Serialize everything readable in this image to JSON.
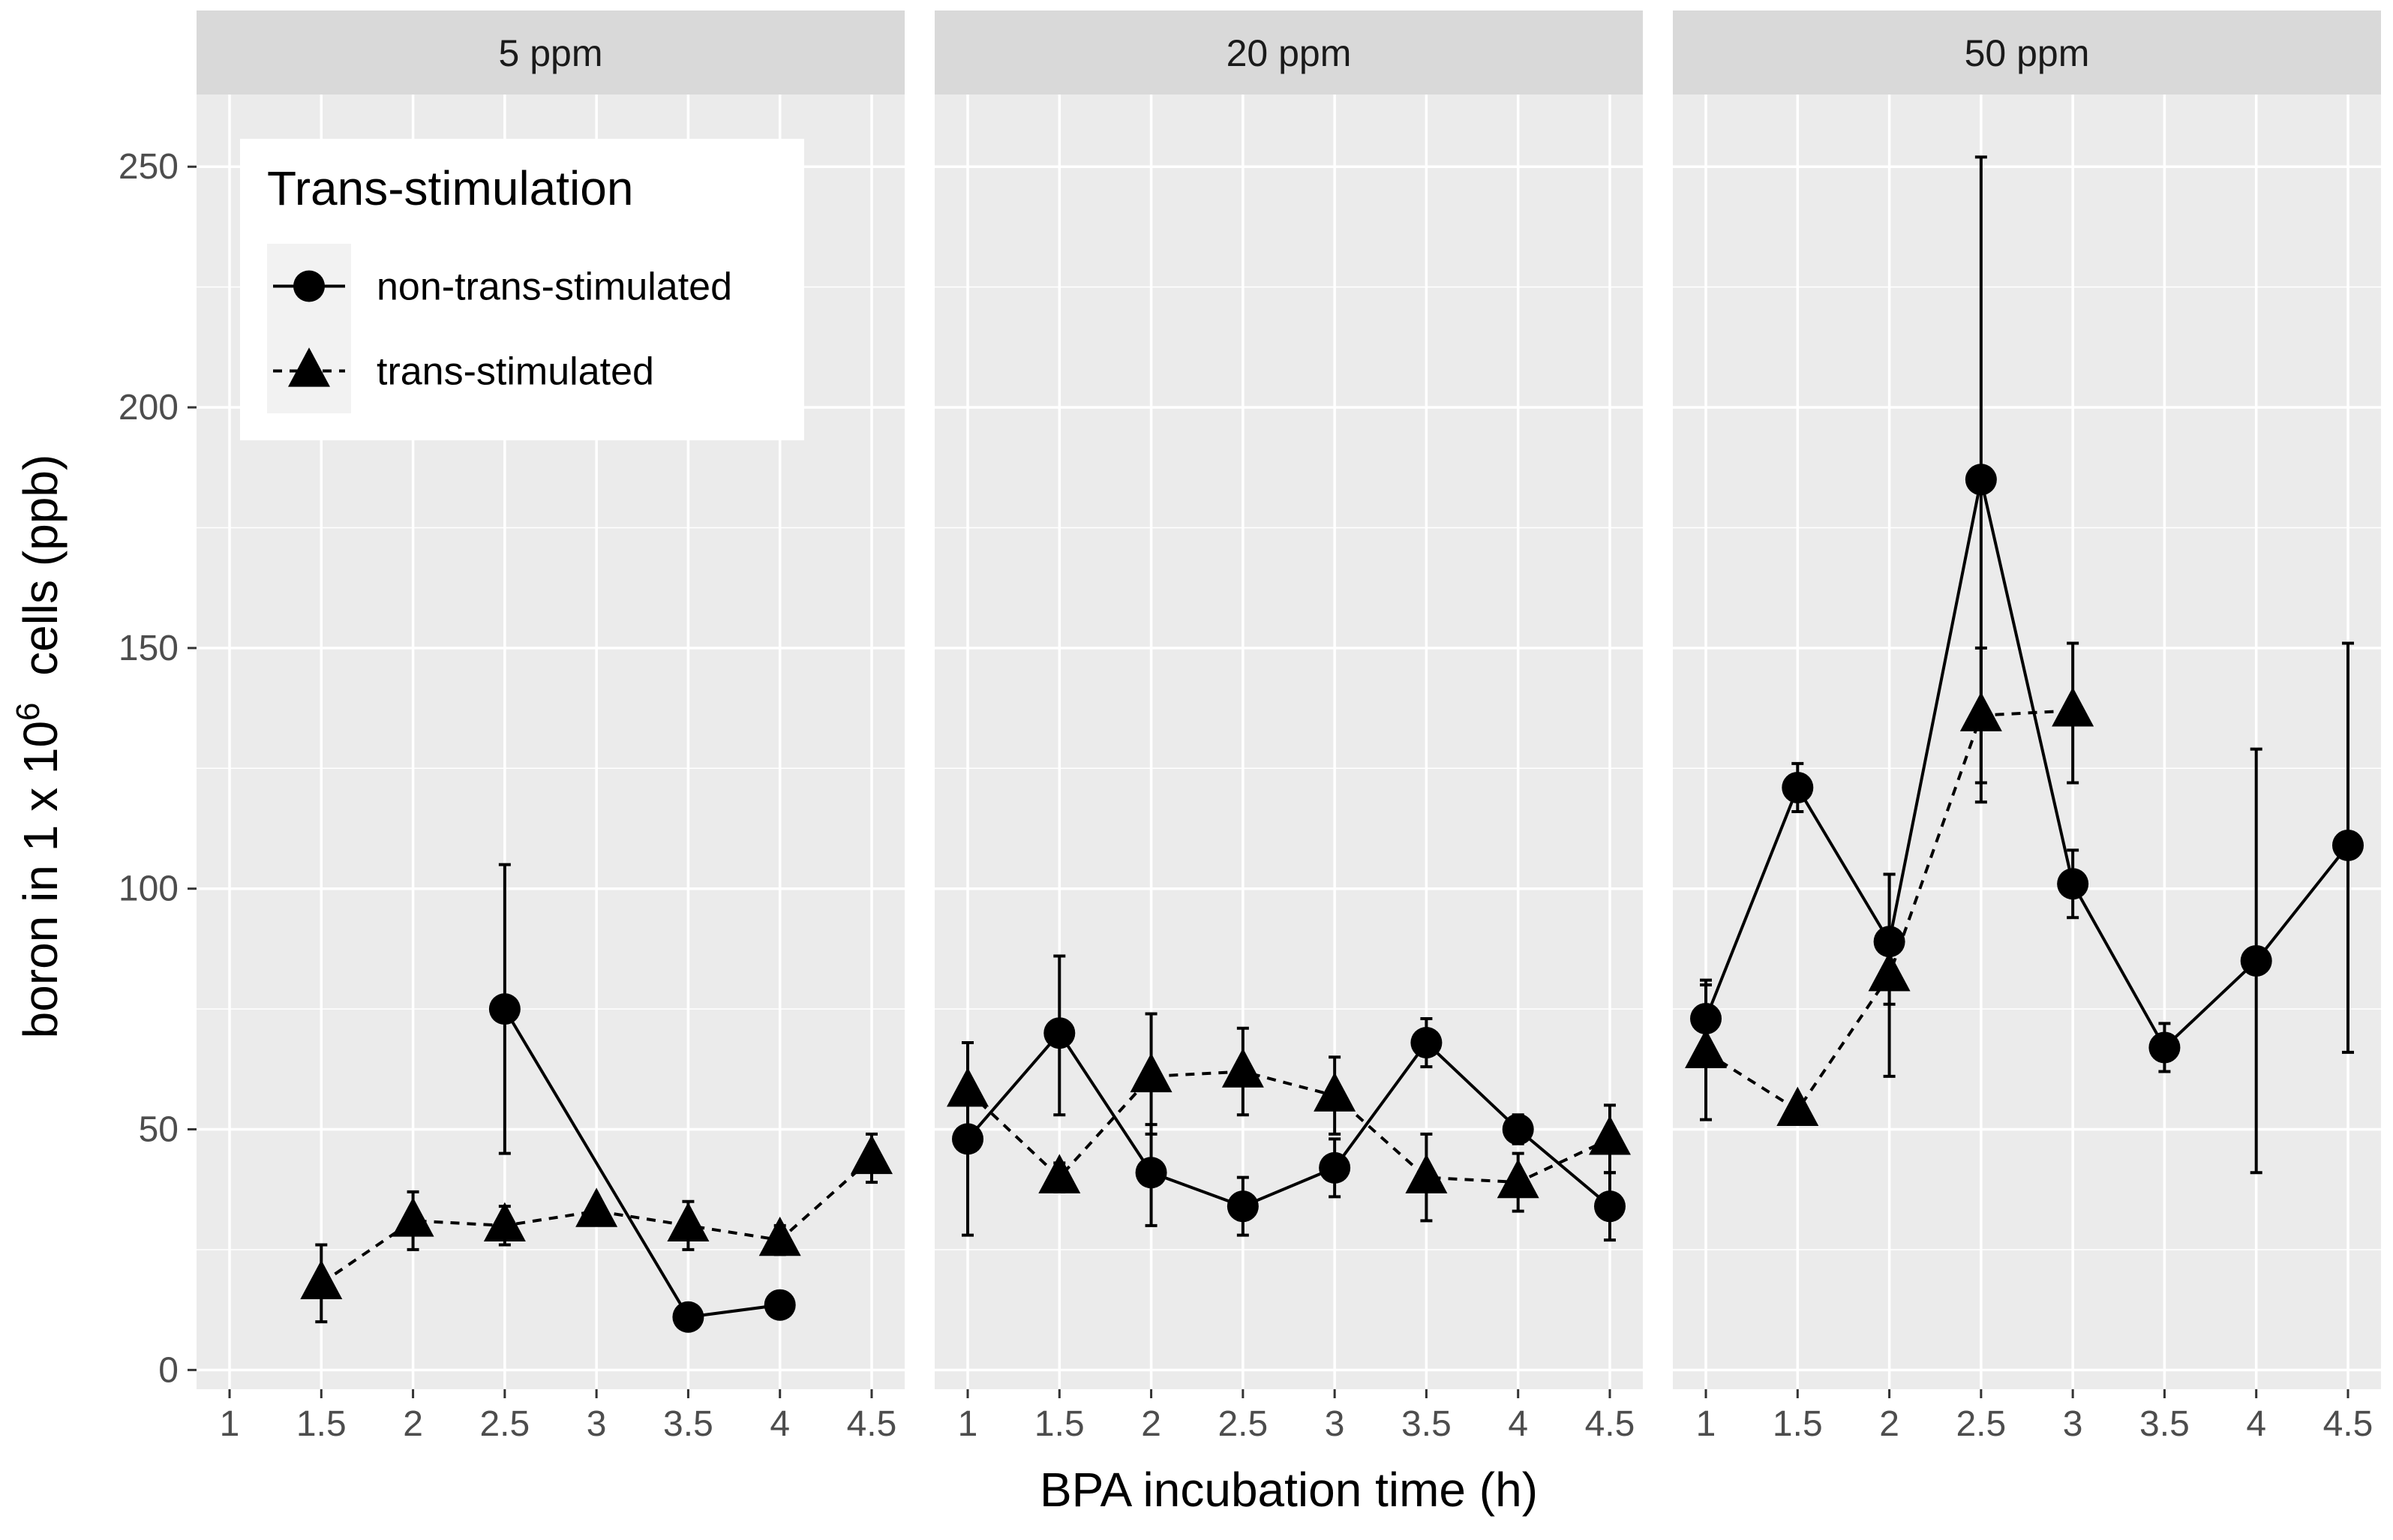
{
  "chart_data": {
    "type": "line",
    "facet_by": "BPA concentration",
    "panels": [
      {
        "title": "5 ppm",
        "series": [
          {
            "name": "non-trans-stimulated",
            "marker": "circle",
            "line": "solid",
            "points": [
              {
                "x": 2.5,
                "y": 75,
                "ymin": 45,
                "ymax": 105
              },
              {
                "x": 3.5,
                "y": 11,
                "ymin": 10,
                "ymax": 12
              },
              {
                "x": 4,
                "y": 13.5,
                "ymin": 12.5,
                "ymax": 14.5
              }
            ]
          },
          {
            "name": "trans-stimulated",
            "marker": "triangle",
            "line": "dashed",
            "points": [
              {
                "x": 1.5,
                "y": 18,
                "ymin": 10,
                "ymax": 26
              },
              {
                "x": 2,
                "y": 31,
                "ymin": 25,
                "ymax": 37
              },
              {
                "x": 2.5,
                "y": 30,
                "ymin": 26,
                "ymax": 34
              },
              {
                "x": 3,
                "y": 33,
                "ymin": 31,
                "ymax": 35
              },
              {
                "x": 3.5,
                "y": 30,
                "ymin": 25,
                "ymax": 35
              },
              {
                "x": 4,
                "y": 27,
                "ymin": 24,
                "ymax": 30
              },
              {
                "x": 4.5,
                "y": 44,
                "ymin": 39,
                "ymax": 49
              }
            ]
          }
        ]
      },
      {
        "title": "20 ppm",
        "series": [
          {
            "name": "non-trans-stimulated",
            "marker": "circle",
            "line": "solid",
            "points": [
              {
                "x": 1,
                "y": 48,
                "ymin": 28,
                "ymax": 68
              },
              {
                "x": 1.5,
                "y": 70,
                "ymin": 53,
                "ymax": 86
              },
              {
                "x": 2,
                "y": 41,
                "ymin": 30,
                "ymax": 51
              },
              {
                "x": 2.5,
                "y": 34,
                "ymin": 28,
                "ymax": 40
              },
              {
                "x": 3,
                "y": 42,
                "ymin": 36,
                "ymax": 48
              },
              {
                "x": 3.5,
                "y": 68,
                "ymin": 63,
                "ymax": 73
              },
              {
                "x": 4,
                "y": 50,
                "ymin": 47,
                "ymax": 53
              },
              {
                "x": 4.5,
                "y": 34,
                "ymin": 27,
                "ymax": 41
              }
            ]
          },
          {
            "name": "trans-stimulated",
            "marker": "triangle",
            "line": "dashed",
            "points": [
              {
                "x": 1,
                "y": 58,
                "ymin": 48,
                "ymax": 68
              },
              {
                "x": 1.5,
                "y": 40,
                "ymin": 37,
                "ymax": 43
              },
              {
                "x": 2,
                "y": 61,
                "ymin": 49,
                "ymax": 74
              },
              {
                "x": 2.5,
                "y": 62,
                "ymin": 53,
                "ymax": 71
              },
              {
                "x": 3,
                "y": 57,
                "ymin": 49,
                "ymax": 65
              },
              {
                "x": 3.5,
                "y": 40,
                "ymin": 31,
                "ymax": 49
              },
              {
                "x": 4,
                "y": 39,
                "ymin": 33,
                "ymax": 45
              },
              {
                "x": 4.5,
                "y": 48,
                "ymin": 41,
                "ymax": 55
              }
            ]
          }
        ]
      },
      {
        "title": "50 ppm",
        "series": [
          {
            "name": "non-trans-stimulated",
            "marker": "circle",
            "line": "solid",
            "points": [
              {
                "x": 1,
                "y": 73,
                "ymin": 66,
                "ymax": 81
              },
              {
                "x": 1.5,
                "y": 121,
                "ymin": 116,
                "ymax": 126
              },
              {
                "x": 2,
                "y": 89,
                "ymin": 76,
                "ymax": 103
              },
              {
                "x": 2.5,
                "y": 185,
                "ymin": 118,
                "ymax": 252
              },
              {
                "x": 3,
                "y": 101,
                "ymin": 94,
                "ymax": 108
              },
              {
                "x": 3.5,
                "y": 67,
                "ymin": 62,
                "ymax": 72
              },
              {
                "x": 4,
                "y": 85,
                "ymin": 41,
                "ymax": 129
              },
              {
                "x": 4.5,
                "y": 109,
                "ymin": 66,
                "ymax": 151
              }
            ]
          },
          {
            "name": "trans-stimulated",
            "marker": "triangle",
            "line": "dashed",
            "points": [
              {
                "x": 1,
                "y": 66,
                "ymin": 52,
                "ymax": 80
              },
              {
                "x": 1.5,
                "y": 54,
                "ymin": 52,
                "ymax": 56
              },
              {
                "x": 2,
                "y": 82,
                "ymin": 61,
                "ymax": 103
              },
              {
                "x": 2.5,
                "y": 136,
                "ymin": 122,
                "ymax": 150
              },
              {
                "x": 3,
                "y": 137,
                "ymin": 122,
                "ymax": 151
              }
            ]
          }
        ]
      }
    ],
    "x_ticks": [
      1,
      1.5,
      2,
      2.5,
      3,
      3.5,
      4,
      4.5
    ],
    "y_ticks": [
      0,
      50,
      100,
      150,
      200,
      250
    ],
    "xlim": [
      0.82,
      4.68
    ],
    "ylim": [
      -4,
      265
    ],
    "xlabel": "BPA incubation time (h)",
    "ylabel_prefix": "boron in 1 x 10",
    "ylabel_superscript": "6",
    "ylabel_suffix": "  cells (ppb)",
    "legend": {
      "title": "Trans-stimulation",
      "placement": "top-left inside first panel",
      "items": [
        "non-trans-stimulated",
        "trans-stimulated"
      ]
    },
    "grid": true,
    "colors": {
      "panel_background": "#ebebeb",
      "grid_major": "#ffffff",
      "strip_background": "#d9d9d9",
      "ink": "#000000",
      "tick_text": "#4d4d4d",
      "strip_text": "#1a1a1a"
    }
  }
}
